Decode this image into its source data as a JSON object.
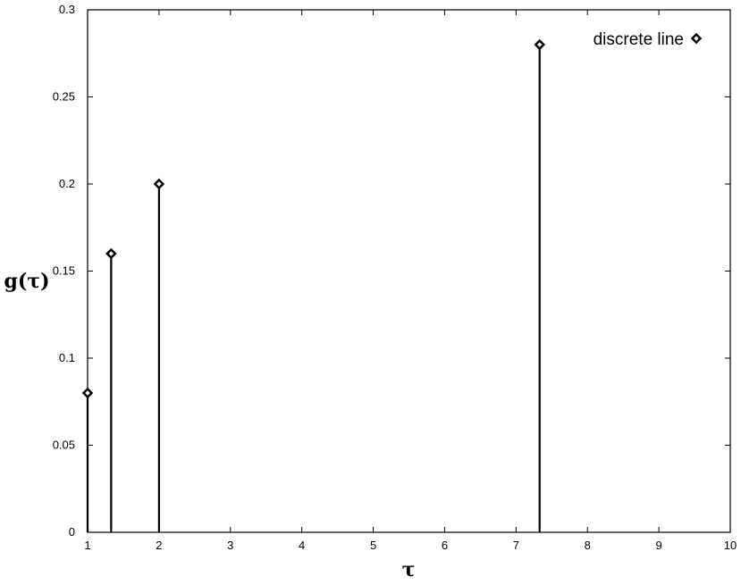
{
  "chart_data": {
    "type": "scatter",
    "style": "stem",
    "title": "",
    "xlabel": "τ",
    "ylabel": "g(τ)",
    "xlim": [
      1,
      10
    ],
    "ylim": [
      0,
      0.3
    ],
    "x_ticks": [
      "1",
      "2",
      "3",
      "4",
      "5",
      "6",
      "7",
      "8",
      "9",
      "10"
    ],
    "y_ticks": [
      "0",
      "0.05",
      "0.1",
      "0.15",
      "0.2",
      "0.25",
      "0.3"
    ],
    "grid": false,
    "legend_position": "top-right",
    "series": [
      {
        "name": "discrete line",
        "marker": "diamond",
        "color": "#000000",
        "x": [
          1.0,
          1.33,
          2.0,
          7.33
        ],
        "y": [
          0.08,
          0.16,
          0.2,
          0.28
        ]
      }
    ]
  }
}
